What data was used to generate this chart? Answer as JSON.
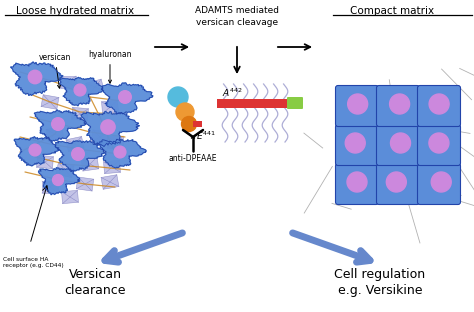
{
  "title_left": "Loose hydrated matrix",
  "title_right": "Compact matrix",
  "center_title": "ADAMTS mediated\nversican cleavage",
  "bottom_left": "Versican\nclearance",
  "bottom_right": "Cell regulation\ne.g. Versikine",
  "label_versican": "versican",
  "label_hyaluronan": "hyaluronan",
  "label_e441": "E",
  "label_e441_sup": "441",
  "label_a442": "A",
  "label_a442_sup": "442",
  "label_antibody": "anti-DPEAAE",
  "label_cell_surface": "Cell surface HA\nreceptor (e.g. CD44)",
  "bg_color": "#ffffff",
  "blue_cell_color": "#5b8dd9",
  "nucleus_color": "#cc88dd",
  "text_color": "#000000",
  "arrow_color": "#6688cc",
  "teal_ball": "#55bbdd",
  "orange_ball_top": "#ee9933",
  "orange_ball_bot": "#dd7711",
  "red_rod": "#dd3333",
  "green_cap": "#88cc44",
  "wave_color": "#9999cc",
  "fiber_color": "#888888",
  "ha_color": "#aaaadd",
  "orange_line": "#cc8822"
}
